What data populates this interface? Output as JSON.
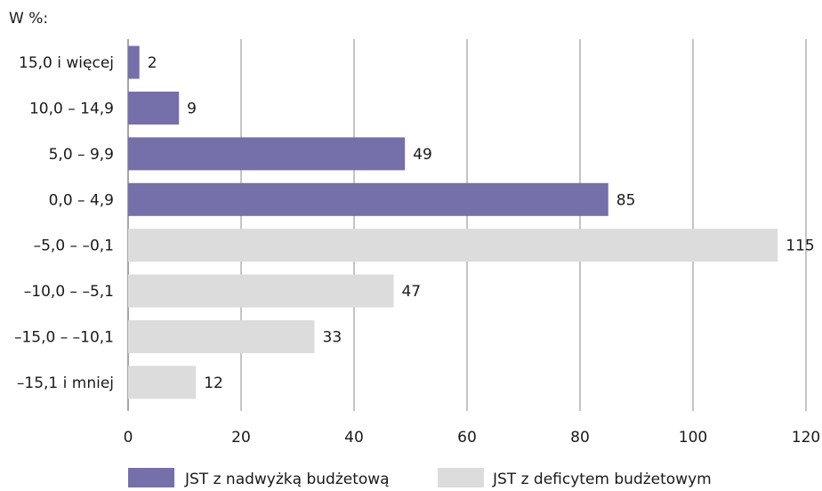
{
  "chart_data": {
    "type": "bar",
    "orientation": "horizontal",
    "unit_label": "W %:",
    "categories": [
      "15,0 i więcej",
      "10,0 – 14,9",
      "5,0 – 9,9",
      "0,0 – 4,9",
      "–5,0 – –0,1",
      "–10,0 – –5,1",
      "–15,0 – –10,1",
      "–15,1 i mniej"
    ],
    "values": [
      2,
      9,
      49,
      85,
      115,
      47,
      33,
      12
    ],
    "series_index": [
      0,
      0,
      0,
      0,
      1,
      1,
      1,
      1
    ],
    "series": [
      {
        "name": "JST z nadwyżką budżetową",
        "color": "#7570a9"
      },
      {
        "name": "JST z deficytem budżetowym",
        "color": "#dcdcdc"
      }
    ],
    "xlim": [
      0,
      120
    ],
    "x_ticks": [
      0,
      20,
      40,
      60,
      80,
      100,
      120
    ],
    "grid": "vertical",
    "legend_position": "bottom"
  }
}
